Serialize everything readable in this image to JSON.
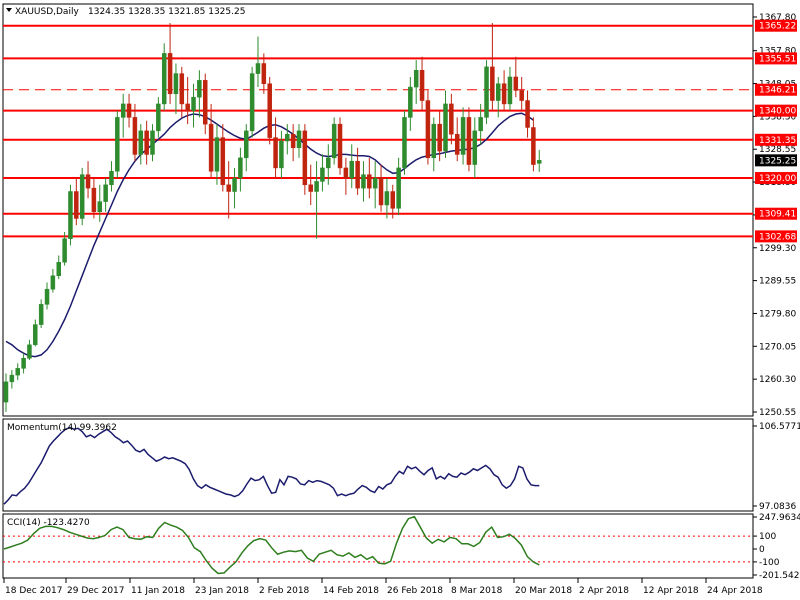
{
  "header": {
    "symbol": "XAUUSD,Daily",
    "ohlc": "1324.35 1328.35 1321.85 1325.25"
  },
  "chart_data": [
    {
      "type": "candlestick",
      "panel": "price",
      "symbol": "XAUUSD",
      "timeframe": "Daily",
      "ylim": [
        1250.55,
        1367.8
      ],
      "y_ticks": [
        "1367.80",
        "1357.80",
        "1348.05",
        "1338.30",
        "1328.55",
        "1318.80",
        "1309.05",
        "1299.30",
        "1289.55",
        "1279.80",
        "1270.05",
        "1260.30",
        "1250.55"
      ],
      "x_ticks": [
        "18 Dec 2017",
        "29 Dec 2017",
        "11 Jan 2018",
        "23 Jan 2018",
        "2 Feb 2018",
        "14 Feb 2018",
        "26 Feb 2018",
        "8 Mar 2018",
        "20 Mar 2018",
        "2 Apr 2018",
        "12 Apr 2018",
        "24 Apr 2018"
      ],
      "current_price": "1325.25",
      "levels": [
        {
          "label": "1365.22",
          "value": 1365.22,
          "style": "solid"
        },
        {
          "label": "1355.51",
          "value": 1355.51,
          "style": "solid"
        },
        {
          "label": "1346.21",
          "value": 1346.21,
          "style": "dashed"
        },
        {
          "label": "1340.00",
          "value": 1340.0,
          "style": "solid"
        },
        {
          "label": "1331.35",
          "value": 1331.35,
          "style": "solid"
        },
        {
          "label": "1320.00",
          "value": 1320.0,
          "style": "solid"
        },
        {
          "label": "1309.41",
          "value": 1309.41,
          "style": "solid"
        },
        {
          "label": "1302.68",
          "value": 1302.68,
          "style": "solid"
        }
      ],
      "candles": [
        [
          1253.5,
          1262,
          1250.6,
          1259.5
        ],
        [
          1259.5,
          1263,
          1257.5,
          1261.5
        ],
        [
          1261.5,
          1265,
          1260,
          1263.5
        ],
        [
          1263.5,
          1268,
          1262,
          1266.5
        ],
        [
          1266.5,
          1272,
          1266,
          1270.5
        ],
        [
          1270.5,
          1278,
          1270,
          1276.5
        ],
        [
          1276.5,
          1284,
          1275.5,
          1282.5
        ],
        [
          1282.5,
          1289,
          1281,
          1287
        ],
        [
          1287,
          1293,
          1286,
          1291
        ],
        [
          1291,
          1297,
          1290,
          1295
        ],
        [
          1295,
          1304,
          1294,
          1302
        ],
        [
          1302,
          1318,
          1300,
          1316
        ],
        [
          1316,
          1320,
          1306,
          1308
        ],
        [
          1308,
          1323,
          1306,
          1321
        ],
        [
          1321,
          1325,
          1314,
          1317
        ],
        [
          1317,
          1320,
          1308,
          1310
        ],
        [
          1310,
          1318,
          1307,
          1313
        ],
        [
          1313,
          1320,
          1310,
          1318
        ],
        [
          1318,
          1325,
          1316,
          1322
        ],
        [
          1322,
          1340,
          1320,
          1338
        ],
        [
          1338,
          1345,
          1332,
          1342
        ],
        [
          1342,
          1345,
          1335,
          1338
        ],
        [
          1338,
          1342,
          1325,
          1327
        ],
        [
          1327,
          1336,
          1324,
          1334
        ],
        [
          1334,
          1337,
          1324,
          1327
        ],
        [
          1327,
          1336,
          1325,
          1334
        ],
        [
          1334,
          1344,
          1332,
          1342
        ],
        [
          1342,
          1360,
          1340,
          1357
        ],
        [
          1357,
          1366,
          1342,
          1345
        ],
        [
          1345,
          1354,
          1339,
          1351
        ],
        [
          1351,
          1353,
          1338,
          1342
        ],
        [
          1342,
          1350,
          1336,
          1340
        ],
        [
          1340,
          1348,
          1335,
          1344
        ],
        [
          1344,
          1352,
          1338,
          1349
        ],
        [
          1349,
          1351,
          1333,
          1336
        ],
        [
          1336,
          1342,
          1320,
          1322
        ],
        [
          1322,
          1336,
          1318,
          1332
        ],
        [
          1332,
          1336,
          1316,
          1318
        ],
        [
          1318,
          1325,
          1308,
          1316
        ],
        [
          1316,
          1323,
          1311,
          1320
        ],
        [
          1320,
          1329,
          1316,
          1326
        ],
        [
          1326,
          1336,
          1322,
          1334
        ],
        [
          1334,
          1353,
          1332,
          1351
        ],
        [
          1351,
          1362,
          1347,
          1354
        ],
        [
          1354,
          1357,
          1345,
          1348
        ],
        [
          1348,
          1350,
          1330,
          1332
        ],
        [
          1332,
          1338,
          1320,
          1323
        ],
        [
          1323,
          1334,
          1320,
          1331
        ],
        [
          1331,
          1336,
          1327,
          1333
        ],
        [
          1333,
          1336,
          1325,
          1329
        ],
        [
          1329,
          1336,
          1326,
          1334
        ],
        [
          1334,
          1336,
          1315,
          1318
        ],
        [
          1318,
          1324,
          1312,
          1316
        ],
        [
          1316,
          1325,
          1302,
          1319
        ],
        [
          1319,
          1327,
          1316,
          1323
        ],
        [
          1323,
          1330,
          1318,
          1326
        ],
        [
          1326,
          1338,
          1324,
          1336
        ],
        [
          1336,
          1338,
          1321,
          1323
        ],
        [
          1323,
          1326,
          1315,
          1320
        ],
        [
          1320,
          1330,
          1317,
          1325
        ],
        [
          1325,
          1329,
          1315,
          1317
        ],
        [
          1317,
          1325,
          1313,
          1321
        ],
        [
          1321,
          1326,
          1314,
          1317
        ],
        [
          1317,
          1325,
          1311,
          1320
        ],
        [
          1320,
          1324,
          1310,
          1312
        ],
        [
          1312,
          1320,
          1308,
          1316
        ],
        [
          1316,
          1318,
          1308,
          1311
        ],
        [
          1311,
          1326,
          1309,
          1323
        ],
        [
          1323,
          1340,
          1321,
          1338
        ],
        [
          1338,
          1350,
          1334,
          1347
        ],
        [
          1347,
          1355,
          1342,
          1352
        ],
        [
          1352,
          1356,
          1340,
          1343
        ],
        [
          1343,
          1346,
          1324,
          1326
        ],
        [
          1326,
          1338,
          1322,
          1336
        ],
        [
          1336,
          1340,
          1325,
          1328
        ],
        [
          1328,
          1346,
          1326,
          1342
        ],
        [
          1342,
          1345,
          1330,
          1333
        ],
        [
          1333,
          1338,
          1325,
          1327
        ],
        [
          1327,
          1341,
          1324,
          1338
        ],
        [
          1338,
          1341,
          1322,
          1324
        ],
        [
          1324,
          1338,
          1320,
          1334
        ],
        [
          1334,
          1342,
          1330,
          1338
        ],
        [
          1338,
          1355,
          1336,
          1353
        ],
        [
          1353,
          1366,
          1340,
          1343
        ],
        [
          1343,
          1350,
          1338,
          1348
        ],
        [
          1348,
          1352,
          1340,
          1342
        ],
        [
          1342,
          1353,
          1340,
          1350
        ],
        [
          1350,
          1356,
          1344,
          1346
        ],
        [
          1346,
          1350,
          1340,
          1343
        ],
        [
          1343,
          1346,
          1332,
          1335
        ],
        [
          1335,
          1338,
          1322,
          1324
        ],
        [
          1324.35,
          1328.35,
          1321.85,
          1325.25
        ]
      ],
      "sma_label": "",
      "sma": [
        1271.5,
        1270.5,
        1269,
        1268,
        1267.2,
        1267,
        1267.5,
        1269,
        1271.5,
        1274.5,
        1278,
        1282,
        1286.5,
        1291,
        1295.5,
        1300,
        1304,
        1308,
        1312,
        1316,
        1319.5,
        1322.5,
        1325,
        1327,
        1328.5,
        1330,
        1331.5,
        1333,
        1335,
        1336.5,
        1337.8,
        1338.6,
        1339,
        1338.8,
        1338.2,
        1337.2,
        1336,
        1334.8,
        1333.6,
        1332.6,
        1331.8,
        1331.5,
        1332.5,
        1333.6,
        1334.8,
        1335.6,
        1335.8,
        1335.2,
        1334.2,
        1333,
        1331.6,
        1330,
        1328.6,
        1327.4,
        1326.6,
        1326.4,
        1326.6,
        1327,
        1327,
        1326.8,
        1326.6,
        1326.6,
        1326.4,
        1325.4,
        1323.8,
        1322.4,
        1321.4,
        1321.6,
        1322.8,
        1324.2,
        1325.4,
        1326.2,
        1326.6,
        1327,
        1327.2,
        1327.6,
        1328,
        1328.2,
        1328.4,
        1328.6,
        1329,
        1330,
        1331.5,
        1333.5,
        1335.5,
        1337,
        1338.3,
        1339,
        1339.2,
        1338.4,
        1337.2
      ]
    },
    {
      "type": "line",
      "panel": "momentum",
      "label": "Momentum(14) 99.3962",
      "ylim": [
        97.0836,
        106.5771
      ],
      "y_ticks": [
        "106.5771",
        "97.0836"
      ],
      "values": [
        97.3,
        97.8,
        98.4,
        98.3,
        98.8,
        99.2,
        99.8,
        100.6,
        101.4,
        102.2,
        103.2,
        104.2,
        104.8,
        105.3,
        105.8,
        106.2,
        106.4,
        106.2,
        106.3,
        105.9,
        105.3,
        105.5,
        105.2,
        105.6,
        105.9,
        106.2,
        105.8,
        105.3,
        105,
        104.6,
        104.8,
        104.3,
        103.7,
        103.5,
        103.8,
        103.2,
        102.8,
        102.4,
        102.6,
        102.9,
        102.7,
        102.8,
        102.6,
        102.4,
        102.1,
        101.4,
        100.3,
        99.5,
        99.2,
        99.6,
        99.3,
        99.1,
        98.9,
        98.7,
        98.5,
        98.4,
        98.2,
        98.4,
        98.9,
        99.7,
        100.4,
        100.1,
        100.2,
        100.6,
        99.5,
        98.6,
        98.7,
        100.2,
        99.6,
        100.6,
        100.5,
        100.3,
        99.7,
        99.6,
        100.1,
        99.9,
        100.1,
        100,
        99.8,
        99.6,
        99.2,
        98.3,
        98.5,
        98.3,
        98.5,
        98.6,
        99.1,
        99.5,
        99.3,
        98.9,
        98.7,
        99.4,
        99.1,
        99.6,
        99.8,
        100.6,
        101.2,
        100.9,
        101.8,
        101.5,
        101.7,
        101.2,
        100.8,
        101.3,
        101.6,
        100.3,
        100.6,
        100.3,
        100.9,
        100.6,
        100.5,
        101,
        100.8,
        101.1,
        101.5,
        101.3,
        101.6,
        101.9,
        101.5,
        100.8,
        100.5,
        99.6,
        99.2,
        99.5,
        100.3,
        101.8,
        101.6,
        100.3,
        99.6,
        99.5,
        99.5
      ]
    },
    {
      "type": "line",
      "panel": "cci",
      "label": "CCI(14) -123.4270",
      "ylim": [
        -201.5429,
        247.9634
      ],
      "y_ticks": [
        "247.9634",
        "100",
        "0",
        "-100",
        "-201.5429"
      ],
      "levels": [
        100,
        -100
      ],
      "values": [
        0,
        15,
        30,
        45,
        70,
        120,
        160,
        175,
        175,
        165,
        150,
        130,
        115,
        100,
        85,
        80,
        90,
        105,
        150,
        170,
        150,
        90,
        80,
        75,
        95,
        90,
        160,
        205,
        185,
        170,
        145,
        90,
        10,
        -20,
        -90,
        -150,
        -190,
        -185,
        -140,
        -100,
        -30,
        25,
        65,
        80,
        70,
        10,
        -40,
        -25,
        -15,
        -20,
        -10,
        -70,
        -95,
        -40,
        -25,
        -10,
        -45,
        -55,
        -30,
        -65,
        -45,
        -80,
        -60,
        -110,
        -115,
        -95,
        45,
        160,
        235,
        250,
        170,
        85,
        45,
        75,
        55,
        90,
        80,
        40,
        40,
        20,
        50,
        130,
        170,
        90,
        95,
        115,
        80,
        30,
        -60,
        -100,
        -123.427
      ]
    },
    {
      "type": "axis",
      "panel": "time",
      "x_ticks": [
        "18 Dec 2017",
        "29 Dec 2017",
        "11 Jan 2018",
        "23 Jan 2018",
        "2 Feb 2018",
        "14 Feb 2018",
        "26 Feb 2018",
        "8 Mar 2018",
        "20 Mar 2018",
        "2 Apr 2018",
        "12 Apr 2018",
        "24 Apr 2018"
      ]
    }
  ],
  "colors": {
    "bull": "#2e8b2e",
    "bear": "#c0240e",
    "sma": "#1c1c6e",
    "level": "#ff0000",
    "momentum": "#1c1c6e",
    "cci": "#2e7d1e"
  }
}
